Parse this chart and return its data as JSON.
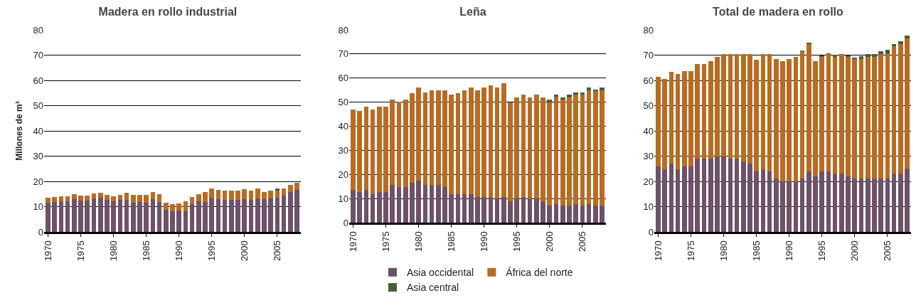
{
  "chart_data": [
    {
      "type": "bar",
      "title": "Madera en rollo industrial",
      "ylabel": "Millones de m³",
      "stacked": true,
      "grid": "y",
      "legend": false,
      "x": [
        1970,
        1971,
        1972,
        1973,
        1974,
        1975,
        1976,
        1977,
        1978,
        1979,
        1980,
        1981,
        1982,
        1983,
        1984,
        1985,
        1986,
        1987,
        1988,
        1989,
        1990,
        1991,
        1992,
        1993,
        1994,
        1995,
        1996,
        1997,
        1998,
        1999,
        2000,
        2001,
        2002,
        2003,
        2004,
        2005,
        2006,
        2007,
        2008
      ],
      "xlim": [
        1969.4,
        2008.6
      ],
      "xticks": [
        1970,
        1975,
        1980,
        1985,
        1990,
        1995,
        2000,
        2005
      ],
      "ylim": [
        0,
        80
      ],
      "yticks": [
        0,
        10,
        20,
        30,
        40,
        50,
        60,
        70,
        80
      ],
      "series": [
        {
          "color": "#6d5269",
          "values": [
            11.5,
            11.9,
            12.1,
            12.1,
            12.9,
            12.4,
            12.4,
            13.2,
            13.5,
            12.7,
            12.1,
            12.7,
            12.7,
            11.6,
            11.9,
            11.6,
            12.9,
            11.9,
            8.7,
            8.1,
            8.4,
            8.1,
            11.1,
            12.1,
            11.9,
            13.5,
            12.9,
            12.7,
            12.7,
            12.7,
            12.9,
            12.7,
            13.2,
            12.9,
            13.5,
            13.5,
            14.3,
            15.9,
            16.7
          ]
        },
        {
          "color": "#b86c23",
          "values": [
            2.0,
            1.9,
            1.9,
            1.9,
            1.9,
            1.9,
            1.9,
            1.9,
            2.1,
            1.9,
            1.9,
            1.9,
            2.7,
            3.0,
            2.7,
            3.0,
            3.0,
            2.9,
            2.9,
            3.0,
            2.9,
            4.0,
            2.7,
            2.7,
            4.0,
            3.7,
            3.8,
            3.7,
            3.7,
            3.7,
            4.1,
            3.7,
            4.0,
            3.0,
            2.7,
            2.7,
            2.9,
            2.7,
            2.7
          ]
        },
        {
          "color": "#4a5e36",
          "values": [
            0,
            0,
            0,
            0,
            0,
            0,
            0,
            0,
            0,
            0,
            0,
            0,
            0,
            0,
            0,
            0,
            0,
            0,
            0,
            0,
            0,
            0,
            0,
            0,
            0,
            0,
            0,
            0,
            0,
            0,
            0,
            0,
            0,
            0,
            0,
            1.0,
            0,
            0,
            0
          ]
        }
      ]
    },
    {
      "type": "bar",
      "title": "Leña",
      "stacked": true,
      "grid": "y",
      "legend": "bottom",
      "x": [
        1970,
        1971,
        1972,
        1973,
        1974,
        1975,
        1976,
        1977,
        1978,
        1979,
        1980,
        1981,
        1982,
        1983,
        1984,
        1985,
        1986,
        1987,
        1988,
        1989,
        1990,
        1991,
        1992,
        1993,
        1994,
        1995,
        1996,
        1997,
        1998,
        1999,
        2000,
        2001,
        2002,
        2003,
        2004,
        2005,
        2006,
        2007,
        2008
      ],
      "xlim": [
        1969.4,
        2008.6
      ],
      "xticks": [
        1970,
        1975,
        1980,
        1985,
        1990,
        1995,
        2000,
        2005
      ],
      "ylim": [
        0,
        80
      ],
      "yticks": [
        0,
        10,
        20,
        30,
        40,
        50,
        60,
        70,
        80
      ],
      "series": [
        {
          "name": "Asia occidental",
          "color": "#6d5269",
          "values": [
            13.7,
            12.6,
            13.7,
            11.9,
            12.6,
            12.6,
            15.5,
            14.7,
            14.7,
            16.6,
            17.4,
            15.5,
            15.5,
            15.5,
            14.7,
            11.9,
            11.9,
            11.9,
            11.9,
            10.7,
            10.7,
            10.7,
            9.9,
            10.7,
            8.8,
            9.9,
            10.7,
            9.9,
            9.9,
            8.8,
            7.1,
            7.8,
            7.1,
            7.1,
            7.8,
            7.1,
            7.8,
            7.0,
            7.0
          ]
        },
        {
          "name": "África del norte",
          "color": "#b86c23",
          "values": [
            33.2,
            33.7,
            34.4,
            35.1,
            35.5,
            35.5,
            35.6,
            35.4,
            36.4,
            37.2,
            38.6,
            38.6,
            39.4,
            39.4,
            40.2,
            41.1,
            41.9,
            43.0,
            44.1,
            44.2,
            45.3,
            46.4,
            46.1,
            47.2,
            41.2,
            42.0,
            42.3,
            42.0,
            43.1,
            43.1,
            42.9,
            44.4,
            44.0,
            44.8,
            45.2,
            45.9,
            47.1,
            47.5,
            48.0
          ]
        },
        {
          "name": "Asia central",
          "color": "#4a5e36",
          "values": [
            0,
            0,
            0,
            0,
            0,
            0,
            0,
            0,
            0,
            0,
            0,
            0,
            0,
            0,
            0,
            0,
            0,
            0,
            0,
            0,
            0,
            0,
            0,
            0,
            0,
            0,
            0,
            0,
            0,
            0,
            1.1,
            0.8,
            0.8,
            1.1,
            1.1,
            1.1,
            1.1,
            0.8,
            1.0
          ]
        }
      ]
    },
    {
      "type": "bar",
      "title": "Total de madera en rollo",
      "stacked": true,
      "grid": "y",
      "legend": false,
      "x": [
        1970,
        1971,
        1972,
        1973,
        1974,
        1975,
        1976,
        1977,
        1978,
        1979,
        1980,
        1981,
        1982,
        1983,
        1984,
        1985,
        1986,
        1987,
        1988,
        1989,
        1990,
        1991,
        1992,
        1993,
        1994,
        1995,
        1996,
        1997,
        1998,
        1999,
        2000,
        2001,
        2002,
        2003,
        2004,
        2005,
        2006,
        2007,
        2008
      ],
      "xlim": [
        1969.4,
        2008.6
      ],
      "xticks": [
        1970,
        1975,
        1980,
        1985,
        1990,
        1995,
        2000,
        2005
      ],
      "ylim": [
        0,
        80
      ],
      "yticks": [
        0,
        10,
        20,
        30,
        40,
        50,
        60,
        70,
        80
      ],
      "series": [
        {
          "color": "#6d5269",
          "values": [
            26.0,
            24.8,
            27.0,
            24.8,
            26.0,
            26.0,
            29.0,
            29.0,
            29.0,
            30.0,
            30.0,
            29.0,
            29.0,
            27.9,
            27.0,
            24.0,
            24.8,
            24.0,
            21.0,
            20.0,
            20.0,
            20.0,
            21.0,
            24.0,
            22.0,
            24.0,
            24.0,
            23.0,
            23.0,
            22.0,
            21.0,
            21.0,
            21.0,
            21.0,
            21.0,
            21.0,
            23.0,
            23.0,
            25.0
          ]
        },
        {
          "color": "#b86c23",
          "values": [
            35.5,
            35.8,
            36.4,
            37.7,
            37.6,
            37.6,
            37.4,
            37.4,
            38.5,
            39.4,
            40.5,
            41.5,
            41.5,
            42.6,
            43.5,
            44.3,
            45.7,
            46.5,
            47.5,
            47.5,
            48.5,
            49.4,
            50.5,
            50.3,
            45.5,
            45.4,
            46.5,
            46.4,
            47.5,
            47.4,
            47.5,
            47.5,
            48.4,
            48.4,
            49.5,
            49.5,
            50.5,
            51.5,
            51.5
          ]
        },
        {
          "color": "#4a5e36",
          "values": [
            0,
            0,
            0,
            0,
            0,
            0,
            0,
            0,
            0,
            0,
            0,
            0,
            0,
            0,
            0,
            0,
            0,
            0,
            0,
            0,
            0,
            0,
            0.3,
            0.5,
            null,
            0.5,
            0.2,
            0.7,
            0,
            0.6,
            0.6,
            1.2,
            1.1,
            1.1,
            1.0,
            1.7,
            0.8,
            1.1,
            1.2
          ]
        }
      ]
    }
  ]
}
